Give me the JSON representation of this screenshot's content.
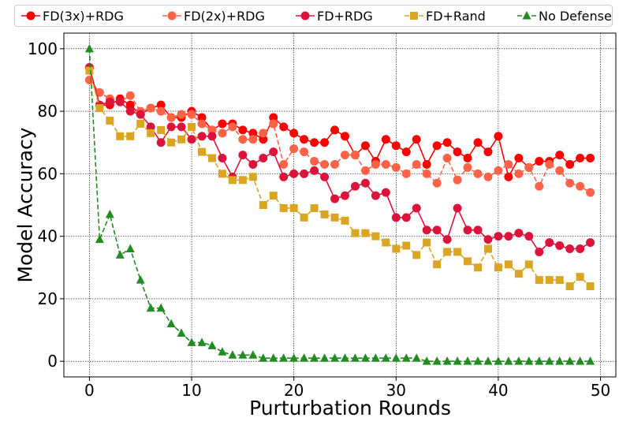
{
  "chart_data": {
    "type": "line",
    "title": "",
    "xlabel": "Purturbation Rounds",
    "ylabel": "Model Accuracy",
    "xlim": [
      -2.5,
      51.5
    ],
    "ylim": [
      -5,
      105
    ],
    "xticks": [
      0,
      10,
      20,
      30,
      40,
      50
    ],
    "yticks": [
      0,
      20,
      40,
      60,
      80,
      100
    ],
    "grid": true,
    "legend_position": "top, above plot",
    "x": [
      0,
      1,
      2,
      3,
      4,
      5,
      6,
      7,
      8,
      9,
      10,
      11,
      12,
      13,
      14,
      15,
      16,
      17,
      18,
      19,
      20,
      21,
      22,
      23,
      24,
      25,
      26,
      27,
      28,
      29,
      30,
      31,
      32,
      33,
      34,
      35,
      36,
      37,
      38,
      39,
      40,
      41,
      42,
      43,
      44,
      45,
      46,
      47,
      48,
      49
    ],
    "series": [
      {
        "name": "FD(3x)+RDG",
        "color": "#ff0000",
        "line_style": "solid",
        "marker": "circle",
        "values": [
          94,
          82,
          82,
          84,
          82,
          79,
          81,
          82,
          78,
          78,
          80,
          78,
          74,
          76,
          76,
          74,
          73,
          71,
          78,
          75,
          73,
          71,
          70,
          70,
          74,
          72,
          66,
          69,
          64,
          71,
          69,
          67,
          71,
          63,
          69,
          70,
          67,
          65,
          70,
          67,
          72,
          59,
          65,
          62,
          64,
          64,
          66,
          63,
          65,
          65
        ]
      },
      {
        "name": "FD(2x)+RDG",
        "color": "#ff6347",
        "line_style": "dashed",
        "marker": "circle",
        "values": [
          90,
          86,
          84,
          83,
          85,
          80,
          81,
          80,
          78,
          79,
          79,
          76,
          74,
          73,
          75,
          71,
          71,
          73,
          76,
          63,
          68,
          67,
          64,
          63,
          63,
          66,
          66,
          61,
          63,
          63,
          62,
          60,
          63,
          60,
          57,
          65,
          58,
          62,
          60,
          59,
          61,
          63,
          60,
          62,
          56,
          63,
          61,
          57,
          56,
          54
        ]
      },
      {
        "name": "FD+RDG",
        "color": "#dc143c",
        "line_style": "solid",
        "marker": "circle",
        "values": [
          94,
          82,
          83,
          83,
          80,
          79,
          75,
          70,
          75,
          75,
          71,
          72,
          72,
          65,
          59,
          66,
          63,
          65,
          67,
          59,
          60,
          60,
          61,
          59,
          52,
          53,
          56,
          57,
          53,
          54,
          46,
          46,
          49,
          42,
          42,
          39,
          49,
          42,
          42,
          39,
          40,
          40,
          41,
          40,
          35,
          38,
          37,
          36,
          36,
          38
        ]
      },
      {
        "name": "FD+Rand",
        "color": "#daa520",
        "line_style": "dashed",
        "marker": "square",
        "values": [
          93,
          81,
          77,
          72,
          72,
          76,
          73,
          74,
          70,
          71,
          75,
          67,
          65,
          60,
          58,
          58,
          59,
          50,
          53,
          49,
          49,
          46,
          49,
          47,
          46,
          45,
          41,
          41,
          40,
          38,
          36,
          37,
          34,
          38,
          31,
          35,
          35,
          32,
          30,
          36,
          30,
          31,
          28,
          31,
          26,
          26,
          26,
          24,
          27,
          24
        ]
      },
      {
        "name": "No Defense",
        "color": "#228b22",
        "line_style": "dashed",
        "marker": "triangle",
        "values": [
          100,
          39,
          47,
          34,
          36,
          26,
          17,
          17,
          12,
          9,
          6,
          6,
          5,
          3,
          2,
          2,
          2,
          1,
          1,
          1,
          1,
          1,
          1,
          1,
          1,
          1,
          1,
          1,
          1,
          1,
          1,
          1,
          1,
          0,
          0,
          0,
          0,
          0,
          0,
          0,
          0,
          0,
          0,
          0,
          0,
          0,
          0,
          0,
          0,
          0
        ]
      }
    ]
  }
}
